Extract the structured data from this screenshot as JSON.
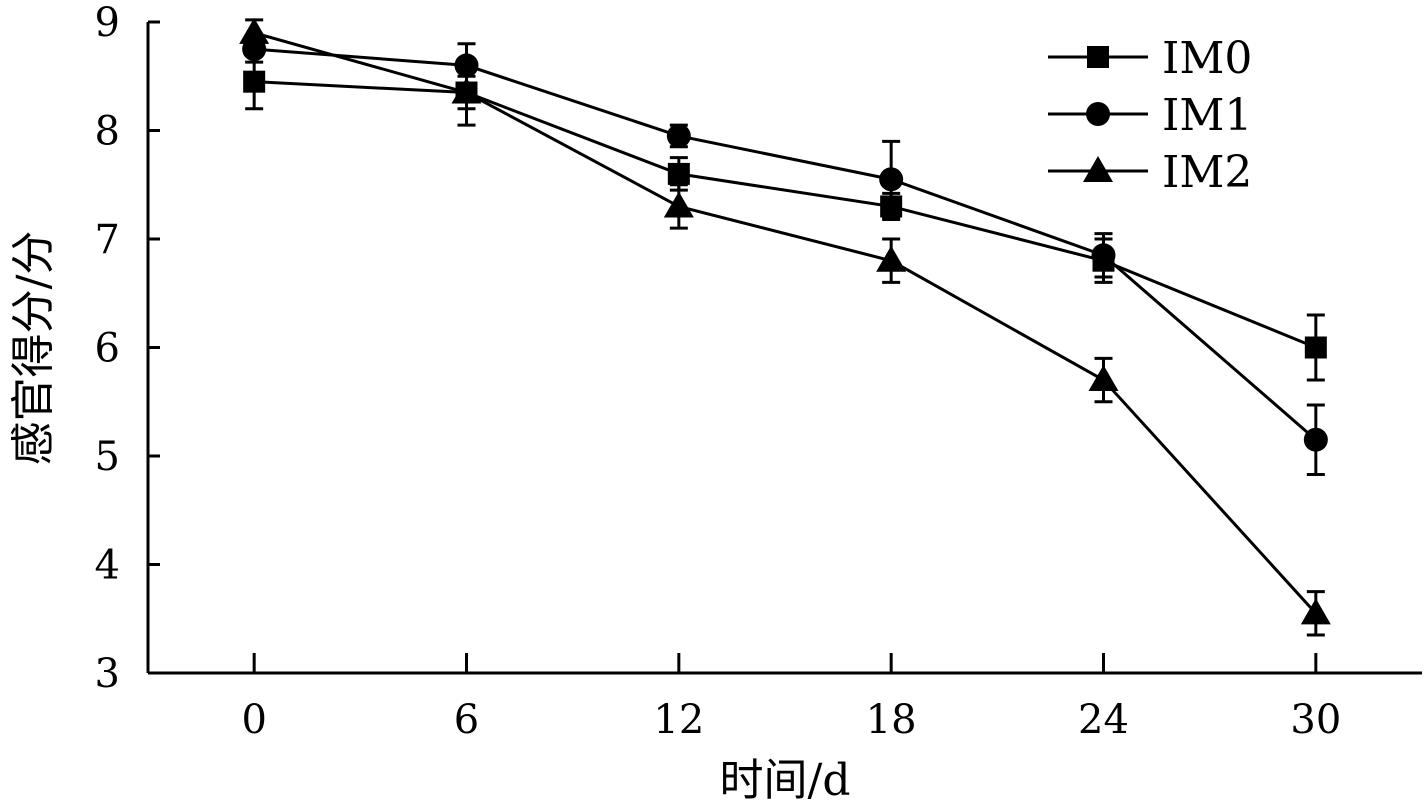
{
  "chart_data": {
    "type": "line",
    "title": "",
    "xlabel": "时间/d",
    "ylabel": "感官得分/分",
    "x": [
      0,
      6,
      12,
      18,
      24,
      30
    ],
    "x_ticks": [
      "0",
      "6",
      "12",
      "18",
      "24",
      "30"
    ],
    "y_ticks": [
      "3",
      "4",
      "5",
      "6",
      "7",
      "8",
      "9"
    ],
    "xlim": [
      -3,
      33
    ],
    "ylim": [
      3,
      9
    ],
    "grid": false,
    "legend_position": "top-right",
    "series": [
      {
        "name": "IM0",
        "marker": "square",
        "values": [
          8.45,
          8.35,
          7.6,
          7.3,
          6.8,
          6.0
        ],
        "errors": [
          0.25,
          0.3,
          0.15,
          0.12,
          0.2,
          0.3
        ]
      },
      {
        "name": "IM1",
        "marker": "circle",
        "values": [
          8.75,
          8.6,
          7.95,
          7.55,
          6.85,
          5.15
        ],
        "errors": [
          0.12,
          0.2,
          0.1,
          0.35,
          0.2,
          0.32
        ]
      },
      {
        "name": "IM2",
        "marker": "triangle",
        "values": [
          8.9,
          8.35,
          7.3,
          6.8,
          5.7,
          3.55
        ],
        "errors": [
          0.12,
          0.15,
          0.2,
          0.2,
          0.2,
          0.2
        ]
      }
    ]
  }
}
